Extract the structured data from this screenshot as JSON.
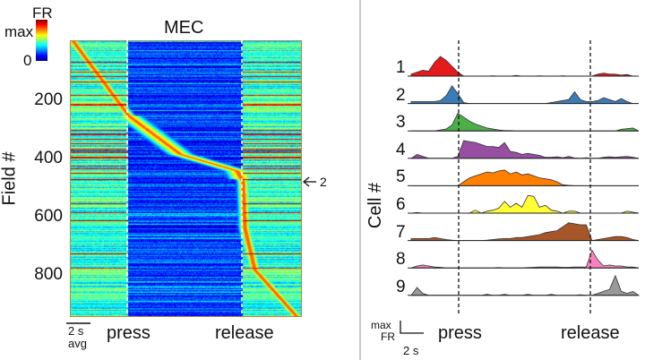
{
  "chart_data": [
    {
      "type": "heatmap",
      "title": "MEC",
      "ylabel": "Field #",
      "yticks": [
        200,
        400,
        600,
        800
      ],
      "ylim": [
        0,
        940
      ],
      "colormap": "jet",
      "colorbar": {
        "label": "FR",
        "max_label": "max",
        "min_label": "0"
      },
      "events": [
        "press",
        "release"
      ],
      "scalebar": {
        "label": "2 s",
        "sublabel": "avg"
      },
      "annotation": {
        "arrow": "←",
        "label": "2"
      },
      "description_of_order": "fields sorted by peak time"
    },
    {
      "type": "area",
      "ylabel": "Cell #",
      "events": [
        "press",
        "release"
      ],
      "scalebar": {
        "y_label_top": "max",
        "y_label_bottom": "FR",
        "x_label": "2 s"
      },
      "series": [
        {
          "name": "1",
          "color": "#e41a1c",
          "values": [
            0.1,
            0.2,
            0.3,
            0.25,
            0.7,
            1,
            0.8,
            0.5,
            0.2,
            0,
            0,
            0,
            0,
            0,
            0.02,
            0,
            0,
            0,
            0.03,
            0,
            0,
            0,
            0.02,
            0,
            0,
            0,
            0.02,
            0,
            0,
            0,
            0,
            0,
            0.1,
            0.15,
            0.1,
            0.1,
            0.05,
            0.08,
            0,
            0
          ]
        },
        {
          "name": "2",
          "color": "#3a7bb8",
          "values": [
            0.1,
            0.1,
            0.1,
            0.1,
            0.1,
            0.15,
            0.4,
            0.9,
            0.5,
            0.05,
            0,
            0,
            0,
            0,
            0,
            0,
            0,
            0,
            0,
            0,
            0,
            0,
            0,
            0,
            0.05,
            0.1,
            0.15,
            0.2,
            0.6,
            0.2,
            0.1,
            0.1,
            0.15,
            0.3,
            0.2,
            0.1,
            0.25,
            0.1,
            0,
            0
          ]
        },
        {
          "name": "3",
          "color": "#4daf4a",
          "values": [
            0,
            0,
            0,
            0,
            0,
            0.05,
            0.1,
            0.3,
            0.9,
            0.7,
            0.5,
            0.35,
            0.25,
            0.15,
            0.1,
            0.05,
            0.02,
            0.02,
            0,
            0,
            0,
            0,
            0,
            0,
            0,
            0,
            0,
            0,
            0,
            0,
            0,
            0,
            0,
            0,
            0,
            0,
            0.08,
            0.12,
            0.15,
            0
          ]
        },
        {
          "name": "4",
          "color": "#984ea3",
          "values": [
            0,
            0.2,
            0.1,
            0,
            0,
            0,
            0,
            0,
            0.1,
            0.9,
            0.85,
            0.8,
            0.7,
            0.6,
            0.6,
            0.55,
            0.8,
            0.35,
            0.3,
            0.2,
            0.25,
            0.2,
            0.15,
            0.05,
            0.05,
            0.08,
            0.03,
            0.1,
            0.02,
            0,
            0.03,
            0,
            0,
            0.05,
            0.08,
            0.05,
            0.08,
            0.1,
            0.05,
            0
          ]
        },
        {
          "name": "5",
          "color": "#ff7f00",
          "values": [
            0,
            0,
            0,
            0,
            0,
            0,
            0,
            0,
            0,
            0.2,
            0.4,
            0.5,
            0.6,
            0.7,
            0.65,
            0.75,
            0.8,
            0.6,
            0.7,
            0.55,
            0.6,
            0.5,
            0.4,
            0.35,
            0.3,
            0.2,
            0.05,
            0.02,
            0,
            0,
            0,
            0,
            0,
            0,
            0,
            0,
            0,
            0,
            0,
            0
          ]
        },
        {
          "name": "6",
          "color": "#ffff33",
          "values": [
            0,
            0.03,
            0,
            0,
            0,
            0,
            0,
            0,
            0,
            0,
            0,
            0.15,
            0,
            0.1,
            0.15,
            0.25,
            0.6,
            0.3,
            0.5,
            0.3,
            0.9,
            0.85,
            0.3,
            0.4,
            0.15,
            0.1,
            0,
            0.1,
            0.1,
            0,
            0,
            0,
            0,
            0,
            0,
            0,
            0,
            0.1,
            0.05,
            0
          ]
        },
        {
          "name": "7",
          "color": "#a65628",
          "values": [
            0.1,
            0.1,
            0.1,
            0.1,
            0.15,
            0.1,
            0.05,
            0.02,
            0,
            0,
            0,
            0,
            0,
            0.02,
            0.05,
            0.08,
            0.1,
            0.1,
            0.15,
            0.15,
            0.2,
            0.25,
            0.3,
            0.4,
            0.45,
            0.5,
            0.7,
            0.9,
            0.85,
            0.8,
            0.8,
            0,
            0.05,
            0.1,
            0.15,
            0.2,
            0.2,
            0.15,
            0.05,
            0
          ]
        },
        {
          "name": "8",
          "color": "#f781bf",
          "values": [
            0,
            0.1,
            0.15,
            0.1,
            0.05,
            0.03,
            0,
            0,
            0,
            0,
            0,
            0,
            0,
            0,
            0,
            0.02,
            0,
            0,
            0,
            0,
            0.02,
            0.03,
            0.05,
            0.05,
            0.05,
            0.05,
            0.03,
            0.03,
            0.05,
            0.05,
            0.05,
            0.9,
            0.4,
            0.1,
            0.15,
            0.1,
            0.1,
            0.05,
            0.05,
            0
          ]
        },
        {
          "name": "9",
          "color": "#999999",
          "values": [
            0,
            0.4,
            0.1,
            0,
            0,
            0,
            0,
            0,
            0,
            0,
            0,
            0,
            0,
            0.05,
            0,
            0,
            0.05,
            0,
            0,
            0,
            0.05,
            0,
            0,
            0,
            0.05,
            0,
            0,
            0,
            0,
            0.03,
            0,
            0,
            0.1,
            0.2,
            0.3,
            1,
            0.2,
            0.1,
            0.2,
            0
          ]
        }
      ]
    }
  ]
}
